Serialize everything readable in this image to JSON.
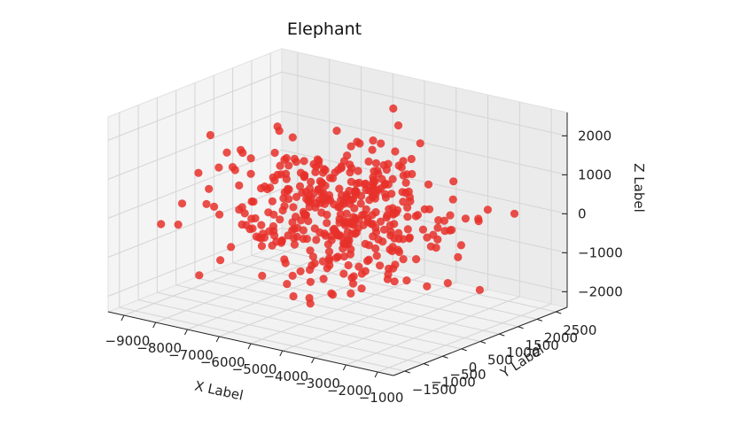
{
  "chart_data": {
    "type": "scatter",
    "projection": "3d",
    "title": "Elephant",
    "xlabel": "X Label",
    "ylabel": "Y Label",
    "zlabel": "Z Label",
    "marker_color": "#e8302a",
    "xlim": [
      -9500,
      -500
    ],
    "ylim": [
      -1800,
      2800
    ],
    "zlim": [
      -2400,
      2600
    ],
    "x_ticks": [
      -9000,
      -8000,
      -7000,
      -6000,
      -5000,
      -4000,
      -3000,
      -2000,
      -1000
    ],
    "x_tick_labels": [
      "−9000",
      "−8000",
      "−7000",
      "−6000",
      "−5000",
      "−4000",
      "−3000",
      "−2000",
      "−1000"
    ],
    "y_ticks": [
      -1500,
      -1000,
      -500,
      0,
      500,
      1000,
      1500,
      2000,
      2500
    ],
    "y_tick_labels": [
      "−1500",
      "−1000",
      "−500",
      "0",
      "500",
      "1000",
      "1500",
      "2000",
      "2500"
    ],
    "z_ticks": [
      -2000,
      -1000,
      0,
      1000,
      2000
    ],
    "z_tick_labels": [
      "−2000",
      "−1000",
      "0",
      "1000",
      "2000"
    ],
    "point_count": 420,
    "x_center": -5200,
    "y_center": 700,
    "z_center": 0,
    "spread": [
      1600,
      700,
      850
    ]
  }
}
